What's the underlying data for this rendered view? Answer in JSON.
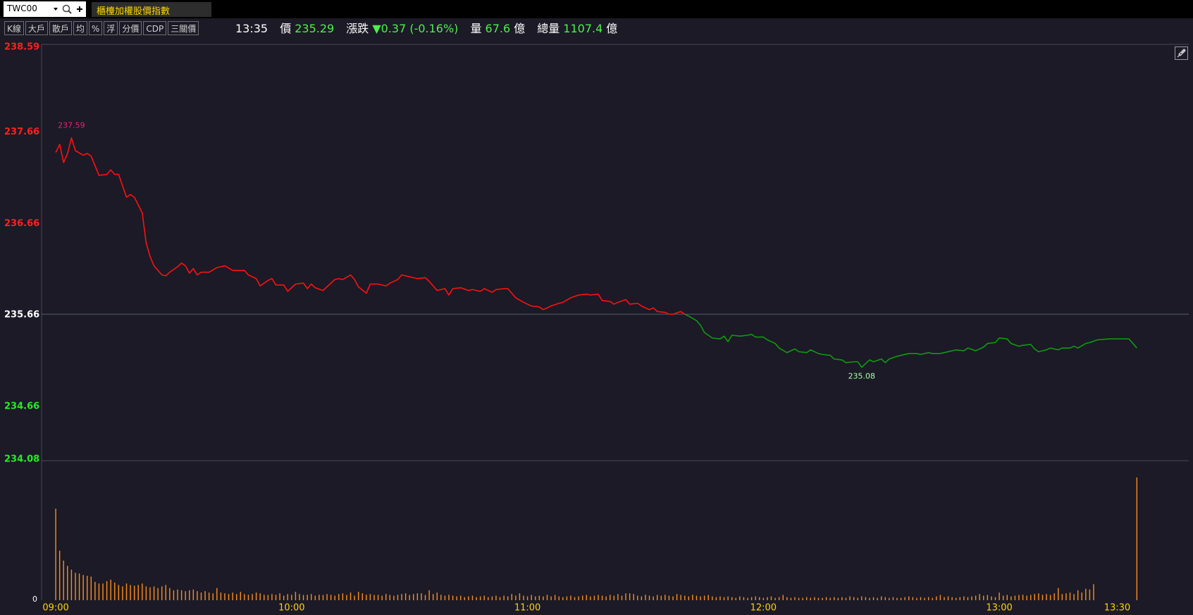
{
  "toolbar": {
    "symbol": "TWC00",
    "title": "櫃檯加權股價指數",
    "buttons": [
      "K線",
      "大戶",
      "散戶",
      "均",
      "%",
      "浮",
      "分價",
      "CDP",
      "三關價"
    ]
  },
  "quote": {
    "time": "13:35",
    "price_label": "價",
    "price": 235.29,
    "change_label": "漲跌",
    "change": "▼0.37 (-0.16%)",
    "volume_label": "量",
    "volume": 67.6,
    "volume_unit": "億",
    "total_label": "總量",
    "total": 1107.4,
    "total_unit": "億"
  },
  "chart_data": [
    {
      "type": "line",
      "x": [
        540,
        541,
        542,
        543,
        544,
        545,
        547,
        548,
        549,
        551,
        553,
        554,
        555,
        556,
        558,
        559,
        560,
        562,
        563,
        564,
        565,
        567,
        568,
        569,
        571,
        572,
        573,
        574,
        575,
        576,
        577,
        579,
        581,
        583,
        585,
        586,
        588,
        589,
        591,
        592,
        594,
        595,
        596,
        598,
        599,
        601,
        603,
        604,
        605,
        606,
        608,
        609,
        611,
        612,
        613,
        615,
        616,
        617,
        619,
        620,
        622,
        624,
        625,
        627,
        628,
        630,
        632,
        634,
        635,
        637,
        639,
        640,
        641,
        643,
        645,
        646,
        648,
        649,
        651,
        652,
        654,
        655,
        656,
        657,
        659,
        661,
        663,
        664,
        666,
        668,
        669,
        671,
        673,
        675,
        676,
        678,
        679,
        681,
        682,
        683,
        685,
        686,
        688,
        689,
        691,
        692,
        693,
        695,
        696,
        697,
        699,
        700,
        701,
        703,
        704,
        705,
        707,
        709,
        710,
        711,
        712,
        714,
        716,
        717,
        718,
        720,
        721,
        723,
        724,
        726,
        728,
        729,
        731,
        732,
        734,
        735,
        737,
        738,
        740,
        741,
        743,
        744,
        745,
        747,
        748,
        750,
        751,
        752,
        754,
        755,
        757,
        759,
        760,
        762,
        763,
        765,
        766,
        768,
        769,
        771,
        772,
        774,
        776,
        777,
        779,
        780,
        782,
        783,
        785,
        786,
        788,
        789,
        790,
        792,
        793,
        795,
        796,
        798,
        799,
        800,
        802,
        803,
        805,
        808,
        811,
        813,
        815
      ],
      "values": [
        237.43,
        237.52,
        237.32,
        237.42,
        237.59,
        237.45,
        237.4,
        237.42,
        237.39,
        237.18,
        237.19,
        237.24,
        237.19,
        237.19,
        236.94,
        236.97,
        236.94,
        236.77,
        236.44,
        236.29,
        236.19,
        236.09,
        236.08,
        236.12,
        236.18,
        236.22,
        236.19,
        236.11,
        236.16,
        236.09,
        236.12,
        236.12,
        236.17,
        236.19,
        236.14,
        236.14,
        236.14,
        236.09,
        236.05,
        235.97,
        236.03,
        236.05,
        235.98,
        235.98,
        235.91,
        235.99,
        236.0,
        235.94,
        235.99,
        235.95,
        235.92,
        235.96,
        236.04,
        236.05,
        236.04,
        236.09,
        236.04,
        235.96,
        235.89,
        235.99,
        235.99,
        235.97,
        236.0,
        236.04,
        236.09,
        236.07,
        236.05,
        236.06,
        236.02,
        235.92,
        235.94,
        235.87,
        235.94,
        235.95,
        235.92,
        235.93,
        235.91,
        235.94,
        235.9,
        235.93,
        235.94,
        235.94,
        235.89,
        235.84,
        235.79,
        235.75,
        235.74,
        235.71,
        235.75,
        235.78,
        235.79,
        235.84,
        235.87,
        235.88,
        235.87,
        235.88,
        235.81,
        235.8,
        235.77,
        235.79,
        235.82,
        235.77,
        235.78,
        235.75,
        235.71,
        235.73,
        235.69,
        235.68,
        235.66,
        235.66,
        235.69,
        235.66,
        235.64,
        235.59,
        235.54,
        235.46,
        235.4,
        235.39,
        235.42,
        235.36,
        235.43,
        235.42,
        235.43,
        235.44,
        235.41,
        235.41,
        235.38,
        235.34,
        235.29,
        235.24,
        235.28,
        235.25,
        235.24,
        235.27,
        235.23,
        235.22,
        235.21,
        235.17,
        235.16,
        235.13,
        235.14,
        235.14,
        235.08,
        235.16,
        235.14,
        235.17,
        235.13,
        235.17,
        235.2,
        235.21,
        235.23,
        235.23,
        235.22,
        235.24,
        235.23,
        235.23,
        235.24,
        235.26,
        235.27,
        235.26,
        235.29,
        235.26,
        235.3,
        235.34,
        235.35,
        235.4,
        235.39,
        235.34,
        235.31,
        235.32,
        235.33,
        235.28,
        235.25,
        235.27,
        235.29,
        235.27,
        235.29,
        235.29,
        235.31,
        235.29,
        235.34,
        235.35,
        235.38,
        235.39,
        235.39,
        235.39,
        235.29
      ],
      "xlim": [
        536.4,
        828.2
      ],
      "ylim": [
        234.08,
        238.59
      ],
      "yticks": [
        238.59,
        237.66,
        236.66,
        235.66,
        234.66,
        234.08
      ],
      "reference": 235.66,
      "line_colors": {
        "up": "#ff1010",
        "down": "#109a10"
      },
      "tick_colors": {
        "up": "#ff2020",
        "flat": "#ffffff",
        "down": "#22ee22"
      },
      "annotations": [
        {
          "text": "237.59",
          "x": 544,
          "y": 237.59,
          "color": "#e8207c",
          "position": "above"
        },
        {
          "text": "235.08",
          "x": 745,
          "y": 235.08,
          "color": "#a8ffa8",
          "position": "below"
        }
      ]
    },
    {
      "type": "bar",
      "x": [
        540,
        541,
        542,
        543,
        544,
        545,
        546,
        547,
        548,
        549,
        550,
        551,
        552,
        553,
        554,
        555,
        556,
        557,
        558,
        559,
        560,
        561,
        562,
        563,
        564,
        565,
        566,
        567,
        568,
        569,
        570,
        571,
        572,
        573,
        574,
        575,
        576,
        577,
        578,
        579,
        580,
        581,
        582,
        583,
        584,
        585,
        586,
        587,
        588,
        589,
        590,
        591,
        592,
        593,
        594,
        595,
        596,
        597,
        598,
        599,
        600,
        601,
        602,
        603,
        604,
        605,
        606,
        607,
        608,
        609,
        610,
        611,
        612,
        613,
        614,
        615,
        616,
        617,
        618,
        619,
        620,
        621,
        622,
        623,
        624,
        625,
        626,
        627,
        628,
        629,
        630,
        631,
        632,
        633,
        634,
        635,
        636,
        637,
        638,
        639,
        640,
        641,
        642,
        643,
        644,
        645,
        646,
        647,
        648,
        649,
        650,
        651,
        652,
        653,
        654,
        655,
        656,
        657,
        658,
        659,
        660,
        661,
        662,
        663,
        664,
        665,
        666,
        667,
        668,
        669,
        670,
        671,
        672,
        673,
        674,
        675,
        676,
        677,
        678,
        679,
        680,
        681,
        682,
        683,
        684,
        685,
        686,
        687,
        688,
        689,
        690,
        691,
        692,
        693,
        694,
        695,
        696,
        697,
        698,
        699,
        700,
        701,
        702,
        703,
        704,
        705,
        706,
        707,
        708,
        709,
        710,
        711,
        712,
        713,
        714,
        715,
        716,
        717,
        718,
        719,
        720,
        721,
        722,
        723,
        724,
        725,
        726,
        727,
        728,
        729,
        730,
        731,
        732,
        733,
        734,
        735,
        736,
        737,
        738,
        739,
        740,
        741,
        742,
        743,
        744,
        745,
        746,
        747,
        748,
        749,
        750,
        751,
        752,
        753,
        754,
        755,
        756,
        757,
        758,
        759,
        760,
        761,
        762,
        763,
        764,
        765,
        766,
        767,
        768,
        769,
        770,
        771,
        772,
        773,
        774,
        775,
        776,
        777,
        778,
        779,
        780,
        781,
        782,
        783,
        784,
        785,
        786,
        787,
        788,
        789,
        790,
        791,
        792,
        793,
        794,
        795,
        796,
        797,
        798,
        799,
        800,
        801,
        802,
        803,
        804,
        815
      ],
      "values": [
        50.4,
        27.3,
        21.8,
        18.9,
        16.8,
        15.1,
        14.7,
        13.9,
        13.4,
        13.0,
        10.1,
        9.2,
        9.2,
        10.5,
        11.3,
        9.7,
        8.4,
        7.6,
        9.2,
        8.4,
        8.0,
        8.4,
        9.2,
        7.6,
        7.1,
        7.6,
        6.7,
        7.6,
        8.4,
        6.7,
        5.5,
        5.9,
        5.5,
        5.0,
        5.5,
        5.9,
        5.0,
        4.2,
        5.0,
        4.2,
        3.8,
        6.7,
        4.2,
        3.8,
        3.4,
        4.2,
        3.4,
        4.6,
        3.4,
        3.0,
        3.4,
        4.2,
        3.8,
        3.0,
        2.9,
        3.4,
        3.0,
        3.8,
        2.5,
        3.4,
        3.0,
        4.6,
        3.4,
        2.9,
        3.0,
        3.4,
        2.5,
        3.0,
        2.9,
        3.4,
        3.0,
        2.5,
        3.4,
        3.8,
        2.9,
        4.2,
        2.5,
        4.6,
        3.8,
        3.0,
        3.4,
        2.9,
        3.0,
        2.5,
        3.4,
        2.9,
        2.5,
        3.0,
        3.4,
        3.8,
        2.9,
        3.4,
        3.8,
        3.8,
        2.9,
        5.5,
        3.4,
        4.2,
        3.0,
        2.5,
        3.0,
        2.5,
        2.1,
        2.5,
        1.7,
        2.1,
        2.5,
        1.7,
        2.1,
        2.5,
        1.7,
        2.1,
        2.5,
        1.7,
        2.5,
        2.1,
        3.4,
        2.5,
        3.8,
        2.5,
        2.1,
        2.9,
        2.1,
        2.5,
        2.1,
        3.0,
        2.1,
        2.9,
        2.1,
        1.7,
        2.1,
        2.5,
        1.7,
        2.1,
        2.5,
        2.9,
        2.1,
        2.5,
        2.9,
        2.5,
        2.1,
        3.0,
        2.5,
        3.4,
        2.5,
        3.8,
        3.8,
        3.4,
        2.5,
        2.1,
        3.0,
        2.5,
        2.1,
        2.9,
        2.5,
        3.0,
        2.5,
        2.1,
        3.4,
        2.9,
        2.5,
        2.1,
        3.0,
        2.5,
        2.1,
        2.5,
        2.9,
        2.1,
        1.7,
        2.1,
        1.7,
        2.1,
        1.7,
        1.3,
        2.1,
        1.7,
        1.3,
        1.7,
        2.1,
        1.7,
        1.3,
        1.7,
        2.1,
        1.3,
        1.7,
        2.9,
        1.7,
        1.3,
        1.7,
        1.3,
        1.3,
        1.7,
        1.3,
        1.7,
        1.3,
        1.3,
        1.7,
        1.3,
        1.7,
        1.3,
        1.7,
        1.3,
        2.1,
        1.7,
        1.3,
        2.1,
        1.7,
        1.3,
        1.7,
        1.3,
        2.1,
        1.7,
        1.3,
        1.7,
        1.3,
        1.3,
        1.7,
        2.1,
        1.7,
        1.3,
        1.7,
        1.3,
        1.7,
        1.3,
        2.1,
        2.9,
        1.7,
        2.1,
        1.7,
        1.3,
        1.7,
        2.1,
        1.7,
        2.1,
        2.5,
        3.4,
        2.5,
        2.9,
        2.1,
        1.7,
        4.2,
        2.5,
        2.9,
        2.1,
        2.5,
        2.9,
        3.0,
        2.5,
        2.9,
        3.4,
        3.8,
        3.0,
        3.4,
        2.9,
        3.8,
        6.7,
        3.4,
        3.8,
        4.2,
        3.4,
        5.5,
        4.2,
        6.3,
        5.9,
        8.8,
        67.6
      ],
      "color": "#ff8c1a",
      "xlim": [
        536.4,
        828.2
      ],
      "ylim": [
        0,
        76.8
      ],
      "yticks": [
        0
      ],
      "xticks": [
        {
          "value": 540,
          "label": "09:00"
        },
        {
          "value": 600,
          "label": "10:00"
        },
        {
          "value": 660,
          "label": "11:00"
        },
        {
          "value": 720,
          "label": "12:00"
        },
        {
          "value": 780,
          "label": "13:00"
        },
        {
          "value": 810,
          "label": "13:30"
        }
      ],
      "xtick_color": "#ffd700"
    }
  ]
}
